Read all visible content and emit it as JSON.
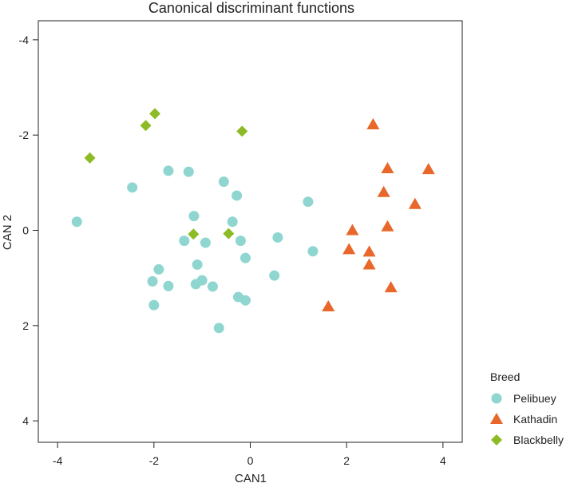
{
  "chart_data": {
    "type": "scatter",
    "title": "Canonical discriminant functions",
    "xlabel": "CAN1",
    "ylabel": "CAN 2",
    "xlim": [
      -4.4,
      4.4
    ],
    "ylim": [
      4.45,
      -4.4
    ],
    "y_reversed": true,
    "xticks": [
      -4,
      -2,
      0,
      2,
      4
    ],
    "yticks": [
      -4,
      -2,
      0,
      2,
      4
    ],
    "grid": false,
    "legend": {
      "title": "Breed",
      "placement": "right-bottom"
    },
    "series": [
      {
        "name": "Pelibuey",
        "marker": "circle",
        "color": "#8fd6d0",
        "points": [
          [
            -3.6,
            -0.18
          ],
          [
            -2.45,
            -0.9
          ],
          [
            -1.7,
            -1.25
          ],
          [
            -1.28,
            -1.23
          ],
          [
            -0.55,
            -1.02
          ],
          [
            -0.28,
            -0.73
          ],
          [
            1.2,
            -0.6
          ],
          [
            -1.17,
            -0.3
          ],
          [
            -0.37,
            -0.18
          ],
          [
            -1.37,
            0.22
          ],
          [
            -0.93,
            0.26
          ],
          [
            -0.2,
            0.22
          ],
          [
            0.57,
            0.15
          ],
          [
            1.3,
            0.44
          ],
          [
            -0.1,
            0.58
          ],
          [
            -1.1,
            0.72
          ],
          [
            -1.9,
            0.82
          ],
          [
            -2.03,
            1.07
          ],
          [
            -1.0,
            1.05
          ],
          [
            -1.13,
            1.13
          ],
          [
            -1.7,
            1.17
          ],
          [
            -0.78,
            1.18
          ],
          [
            0.5,
            0.95
          ],
          [
            -0.25,
            1.4
          ],
          [
            -0.1,
            1.47
          ],
          [
            -2.0,
            1.57
          ],
          [
            -0.65,
            2.05
          ]
        ]
      },
      {
        "name": "Kathadin",
        "marker": "triangle",
        "color": "#e8672a",
        "points": [
          [
            2.55,
            -2.22
          ],
          [
            2.85,
            -1.3
          ],
          [
            3.7,
            -1.28
          ],
          [
            2.77,
            -0.8
          ],
          [
            3.42,
            -0.55
          ],
          [
            2.12,
            0.0
          ],
          [
            2.85,
            -0.08
          ],
          [
            2.05,
            0.4
          ],
          [
            2.47,
            0.45
          ],
          [
            2.47,
            0.72
          ],
          [
            2.92,
            1.2
          ],
          [
            1.62,
            1.6
          ]
        ]
      },
      {
        "name": "Blackbelly",
        "marker": "diamond",
        "color": "#8dbb25",
        "points": [
          [
            -1.98,
            -2.45
          ],
          [
            -2.17,
            -2.2
          ],
          [
            -0.17,
            -2.08
          ],
          [
            -3.33,
            -1.52
          ],
          [
            -0.45,
            0.07
          ],
          [
            -1.18,
            0.08
          ]
        ]
      }
    ]
  }
}
